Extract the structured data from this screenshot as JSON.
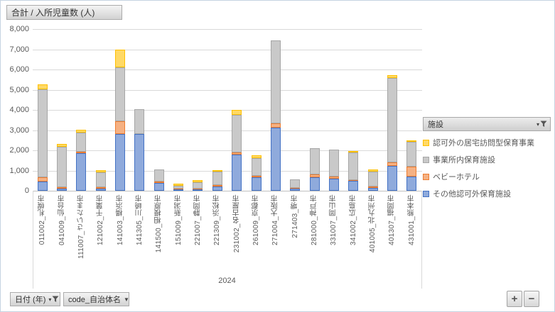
{
  "title_button": {
    "label": "合計 / 入所児童数 (人)"
  },
  "legend": {
    "header": {
      "label": "施設",
      "icon": "filter-funnel"
    },
    "items": [
      {
        "label": "認可外の居宅訪問型保育事業",
        "fill": "#FFD966",
        "border": "#FFC000"
      },
      {
        "label": "事業所内保育施設",
        "fill": "#C9C9C9",
        "border": "#A6A6A6"
      },
      {
        "label": "ベビーホテル",
        "fill": "#F5B183",
        "border": "#ED7D31"
      },
      {
        "label": "その他認可外保育施設",
        "fill": "#8FAADC",
        "border": "#4472C4"
      }
    ]
  },
  "chart_data": {
    "type": "bar",
    "stacked": true,
    "title": "合計 / 入所児童数 (人)",
    "grid": true,
    "legend_position": "right",
    "legend_title": "施設",
    "ylim": [
      0,
      8000
    ],
    "ytick_values": [
      0,
      1000,
      2000,
      3000,
      4000,
      5000,
      6000,
      7000,
      8000
    ],
    "ytick_labels": [
      "0",
      "1,000",
      "2,000",
      "3,000",
      "4,000",
      "5,000",
      "6,000",
      "7,000",
      "8,000"
    ],
    "x_group_label": "2024",
    "categories": [
      "011002_札幌市",
      "041009_仙台市",
      "111007_さいたま市",
      "121002_千葉市",
      "141003_横浜市",
      "141305_川崎市",
      "141500_相模原市",
      "151009_新潟市",
      "221007_静岡市",
      "221309_浜松市",
      "231002_名古屋市",
      "261009_京都市",
      "271004_大阪市",
      "271403_堺市",
      "281000_神戸市",
      "331007_岡山市",
      "341002_広島市",
      "401005_北九州市",
      "401307_福岡市",
      "431001_熊本市"
    ],
    "series": [
      {
        "name": "その他認可外保育施設",
        "fill": "#8FAADC",
        "border": "#4472C4",
        "values": [
          450,
          110,
          1850,
          100,
          2800,
          2800,
          375,
          60,
          60,
          220,
          1800,
          670,
          3120,
          100,
          680,
          600,
          480,
          130,
          1220,
          710
        ]
      },
      {
        "name": "ベビーホテル",
        "fill": "#F5B183",
        "border": "#ED7D31",
        "values": [
          230,
          60,
          90,
          60,
          650,
          0,
          80,
          50,
          45,
          70,
          90,
          80,
          210,
          40,
          140,
          110,
          60,
          80,
          200,
          470
        ]
      },
      {
        "name": "事業所内保育施設",
        "fill": "#C9C9C9",
        "border": "#A6A6A6",
        "values": [
          4340,
          2020,
          950,
          740,
          2650,
          1230,
          590,
          150,
          320,
          640,
          1850,
          875,
          4120,
          410,
          1290,
          1340,
          1340,
          740,
          4150,
          1240
        ]
      },
      {
        "name": "認可外の居宅訪問型保育事業",
        "fill": "#FFD966",
        "border": "#FFC000",
        "values": [
          230,
          120,
          120,
          105,
          900,
          0,
          0,
          90,
          95,
          100,
          250,
          120,
          0,
          0,
          0,
          0,
          70,
          95,
          150,
          80
        ]
      }
    ]
  },
  "field_buttons": {
    "date": {
      "label": "日付 (年)",
      "icon": "filter-funnel-dropdown"
    },
    "code": {
      "label": "code_自治体名",
      "icon": "dropdown-arrow"
    }
  },
  "zoom_buttons": {
    "plus": "+",
    "minus": "−"
  }
}
